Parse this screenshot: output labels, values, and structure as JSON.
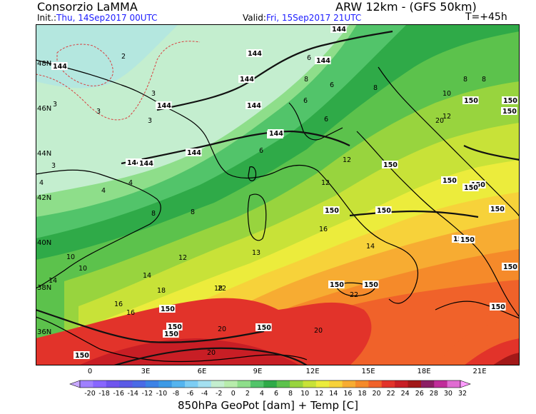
{
  "header": {
    "title_left": "Consorzio LaMMA",
    "title_right": "ARW 12km - (GFS 50km)",
    "init_key": "Init.:",
    "init_value": "Thu, 14Sep2017 00UTC",
    "valid_key": "Valid:",
    "valid_value": "Fri, 15Sep2017 21UTC",
    "forecast_step": "T=+45h"
  },
  "map": {
    "lat_labels": [
      "48N",
      "46N",
      "44N",
      "42N",
      "40N",
      "38N",
      "36N"
    ],
    "lon_labels": [
      "0",
      "3E",
      "6E",
      "9E",
      "12E",
      "15E",
      "18E",
      "21E"
    ],
    "temperature_labels": [
      {
        "text": "2",
        "col": "black"
      },
      {
        "text": "3",
        "col": "black"
      },
      {
        "text": "3",
        "col": "black"
      },
      {
        "text": "3",
        "col": "black"
      },
      {
        "text": "3",
        "col": "black"
      },
      {
        "text": "3",
        "col": "black"
      },
      {
        "text": "4",
        "col": "black"
      },
      {
        "text": "4",
        "col": "black"
      },
      {
        "text": "4",
        "col": "black"
      },
      {
        "text": "4",
        "col": "black"
      },
      {
        "text": "6",
        "col": "black"
      },
      {
        "text": "6",
        "col": "black"
      },
      {
        "text": "6",
        "col": "black"
      },
      {
        "text": "6",
        "col": "black"
      },
      {
        "text": "6",
        "col": "black"
      },
      {
        "text": "8",
        "col": "black"
      },
      {
        "text": "8",
        "col": "black"
      },
      {
        "text": "8",
        "col": "black"
      },
      {
        "text": "8",
        "col": "black"
      },
      {
        "text": "8",
        "col": "black"
      },
      {
        "text": "8",
        "col": "black"
      },
      {
        "text": "10",
        "col": "black"
      },
      {
        "text": "10",
        "col": "black"
      },
      {
        "text": "10",
        "col": "black"
      },
      {
        "text": "12",
        "col": "black"
      },
      {
        "text": "12",
        "col": "black"
      },
      {
        "text": "12",
        "col": "black"
      },
      {
        "text": "12",
        "col": "black"
      },
      {
        "text": "13",
        "col": "black"
      },
      {
        "text": "14",
        "col": "black"
      },
      {
        "text": "14",
        "col": "black"
      },
      {
        "text": "14",
        "col": "black"
      },
      {
        "text": "16",
        "col": "black"
      },
      {
        "text": "16",
        "col": "black"
      },
      {
        "text": "16",
        "col": "black"
      },
      {
        "text": "18",
        "col": "black"
      },
      {
        "text": "18",
        "col": "black"
      },
      {
        "text": "20",
        "col": "black"
      },
      {
        "text": "20",
        "col": "black"
      },
      {
        "text": "20",
        "col": "black"
      },
      {
        "text": "22",
        "col": "black"
      },
      {
        "text": "22",
        "col": "black"
      },
      {
        "text": "20",
        "col": "black"
      }
    ],
    "geopotential_labels": [
      "144",
      "144",
      "144",
      "144",
      "144",
      "144",
      "144",
      "144",
      "144",
      "144",
      "144",
      "144",
      "150",
      "150",
      "150",
      "150",
      "150",
      "150",
      "150",
      "150",
      "150",
      "150",
      "150",
      "150",
      "150",
      "150",
      "150",
      "150",
      "150",
      "150",
      "150",
      "150",
      "150"
    ]
  },
  "colorbar": {
    "ticks": [
      "-20",
      "-18",
      "-16",
      "-14",
      "-12",
      "-10",
      "-8",
      "-6",
      "-4",
      "-2",
      "0",
      "2",
      "4",
      "6",
      "8",
      "10",
      "12",
      "14",
      "16",
      "18",
      "20",
      "22",
      "24",
      "26",
      "28",
      "30",
      "32"
    ],
    "colors": [
      "#9f80ff",
      "#8866ff",
      "#6f55ee",
      "#5a5ae6",
      "#4a6ae6",
      "#3c82e6",
      "#3c9ae6",
      "#54b4ef",
      "#7ccdf4",
      "#a4e0f0",
      "#c4eecf",
      "#b8ecac",
      "#8ede8a",
      "#52c46a",
      "#2faa48",
      "#5cc24c",
      "#98d43e",
      "#c8e238",
      "#ecec3c",
      "#f7d23a",
      "#f7ac32",
      "#f58a2a",
      "#f0622a",
      "#e2332a",
      "#c81e25",
      "#a21818",
      "#8c1e64",
      "#c02c9a",
      "#e06cd2"
    ],
    "title": "850hPa GeoPot [dam] + Temp [C]"
  }
}
